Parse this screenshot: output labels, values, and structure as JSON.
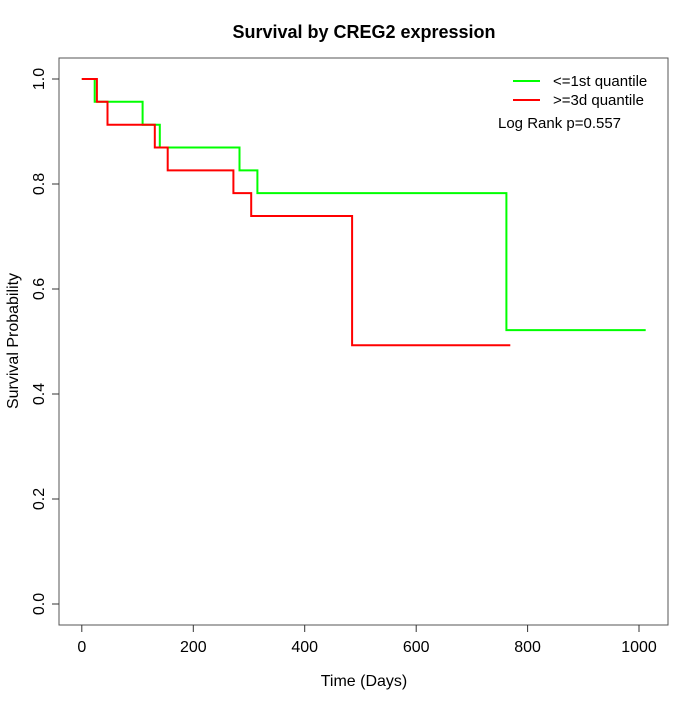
{
  "chart_data": {
    "type": "line",
    "subtype": "kaplan-meier-step",
    "title": "Survival by CREG2 expression",
    "xlabel": "Time (Days)",
    "ylabel": "Survival Probability",
    "x_ticks": [
      0,
      200,
      400,
      600,
      800,
      1000
    ],
    "y_ticks": [
      0.0,
      0.2,
      0.4,
      0.6,
      0.8,
      1.0
    ],
    "xlim": [
      -41,
      1052
    ],
    "ylim": [
      -0.04,
      1.04
    ],
    "grid": false,
    "legend_position": "top-right",
    "annotation": "Log Rank p=0.557",
    "series": [
      {
        "name": "<=1st quantile",
        "color": "#00ff00",
        "steps": [
          [
            0,
            1.0
          ],
          [
            23,
            0.9565
          ],
          [
            109,
            0.913
          ],
          [
            140,
            0.8696
          ],
          [
            283,
            0.826
          ],
          [
            315,
            0.7826
          ],
          [
            762,
            0.5217
          ],
          [
            1012,
            0.5217
          ]
        ]
      },
      {
        "name": ">=3d quantile",
        "color": "#ff0000",
        "steps": [
          [
            0,
            1.0
          ],
          [
            27,
            0.9565
          ],
          [
            46,
            0.913
          ],
          [
            131,
            0.8696
          ],
          [
            154,
            0.826
          ],
          [
            272,
            0.7826
          ],
          [
            304,
            0.7391
          ],
          [
            485,
            0.4928
          ],
          [
            769,
            0.4928
          ]
        ]
      }
    ]
  },
  "colors": {
    "axis": "#555555",
    "tick": "#333333",
    "text": "#000000"
  }
}
